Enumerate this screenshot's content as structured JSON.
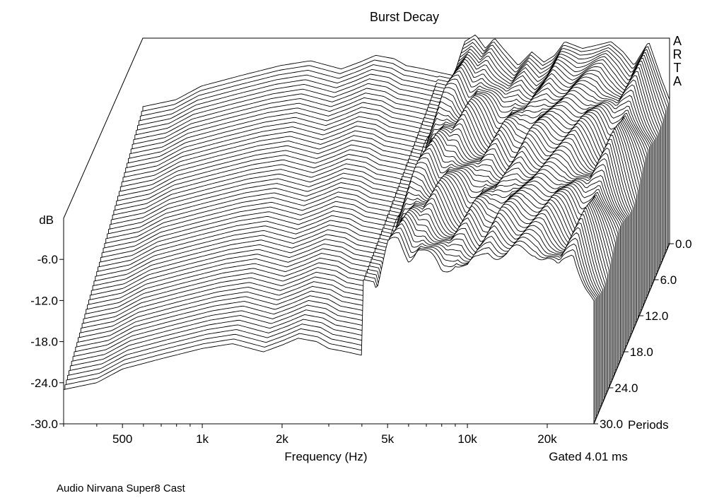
{
  "chart_data": {
    "type": "waterfall",
    "title": "Burst Decay",
    "xlabel": "Frequency (Hz)",
    "ylabel": "dB",
    "zlabel": "Periods",
    "x_scale": "log",
    "xlim": [
      300,
      30000
    ],
    "ylim": [
      -30,
      0
    ],
    "zlim": [
      0,
      30
    ],
    "x_ticks": [
      {
        "value": 500,
        "label": "500"
      },
      {
        "value": 1000,
        "label": "1k"
      },
      {
        "value": 2000,
        "label": "2k"
      },
      {
        "value": 5000,
        "label": "5k"
      },
      {
        "value": 10000,
        "label": "10k"
      },
      {
        "value": 20000,
        "label": "20k"
      }
    ],
    "y_ticks": [
      {
        "value": -6,
        "label": "-6.0"
      },
      {
        "value": -12,
        "label": "-12.0"
      },
      {
        "value": -18,
        "label": "-18.0"
      },
      {
        "value": -24,
        "label": "-24.0"
      },
      {
        "value": -30,
        "label": "-30.0"
      }
    ],
    "z_ticks": [
      {
        "value": 0,
        "label": "0.0"
      },
      {
        "value": 6,
        "label": "6.0"
      },
      {
        "value": 12,
        "label": "12.0"
      },
      {
        "value": 18,
        "label": "18.0"
      },
      {
        "value": 24,
        "label": "24.0"
      },
      {
        "value": 30,
        "label": "30.0"
      }
    ],
    "z_unit_label": "Periods",
    "gate_label": "Gated 4.01 ms",
    "watermark": "ARTA",
    "footer": "Audio Nirvana Super8 Cast",
    "slices": 60,
    "floor_db": -30,
    "initial_response": {
      "freq_hz": [
        300,
        400,
        500,
        700,
        1000,
        1300,
        1700,
        2000,
        2300,
        2700,
        3000,
        3500,
        4000,
        4600,
        5000,
        5500,
        6000,
        6500,
        7000,
        8000,
        9000,
        10000,
        11000,
        12000,
        14000,
        16000,
        18000,
        20000,
        22000,
        25000,
        28000,
        30000
      ],
      "db": [
        -10,
        -9,
        -7,
        -5.5,
        -4,
        -3.3,
        -4.5,
        -3.5,
        -2.5,
        -3,
        -4,
        -4.5,
        -5,
        -5.5,
        -0.5,
        0.5,
        -1.5,
        0,
        -1.5,
        -4,
        -2,
        -3.5,
        -2.5,
        -0.5,
        -1.5,
        -1,
        -0.5,
        -2,
        -4,
        -0.5,
        -6,
        -9
      ]
    },
    "decay_rates_db_per_period": {
      "below_4k": 0.5,
      "above_4k": 0.13
    }
  }
}
